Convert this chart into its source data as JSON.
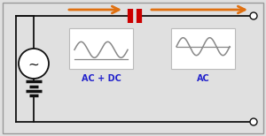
{
  "bg_color": "#e0e0e0",
  "border_color": "#999999",
  "wire_color": "#111111",
  "arrow_color": "#e07010",
  "cap_color": "#cc0000",
  "label_color": "#2222cc",
  "signal_color": "#888888",
  "fig_width": 3.0,
  "fig_height": 1.54,
  "ac_dc_label": "AC + DC",
  "ac_label": "AC",
  "label_fontsize": 7.0
}
